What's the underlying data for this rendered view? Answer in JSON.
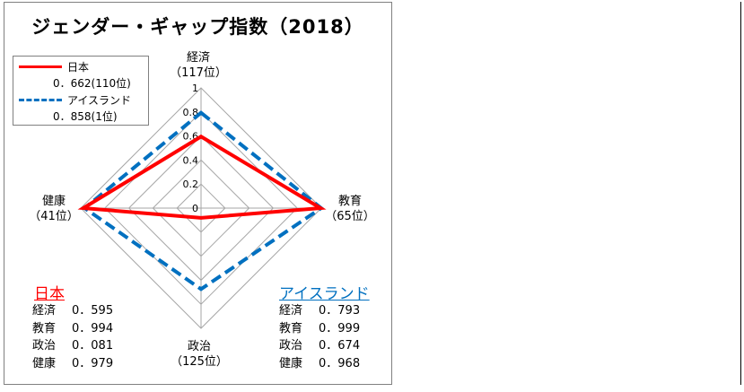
{
  "title": "ジェンダー・ギャップ指数（2018）",
  "axes": [
    {
      "name": "経済",
      "rank": "（117位）"
    },
    {
      "name": "教育",
      "rank": "（65位）"
    },
    {
      "name": "政治",
      "rank": "（125位）"
    },
    {
      "name": "健康",
      "rank": "（41位）"
    }
  ],
  "legend": [
    {
      "name": "日本",
      "value": "0．662(110位)"
    },
    {
      "name": "アイスランド",
      "value": "0．858(1位)"
    }
  ],
  "tables": {
    "japan": {
      "title": "日本",
      "rows": [
        {
          "k": "経済",
          "v": "0．595"
        },
        {
          "k": "教育",
          "v": "0．994"
        },
        {
          "k": "政治",
          "v": "0．081"
        },
        {
          "k": "健康",
          "v": "0．979"
        }
      ]
    },
    "iceland": {
      "title": "アイスランド",
      "rows": [
        {
          "k": "経済",
          "v": "0．793"
        },
        {
          "k": "教育",
          "v": "0．999"
        },
        {
          "k": "政治",
          "v": "0．674"
        },
        {
          "k": "健康",
          "v": "0．968"
        }
      ]
    }
  },
  "colors": {
    "japan": "#ff0000",
    "iceland": "#0070c0",
    "grid": "#a6a6a6",
    "title_japan": "#ff0000",
    "title_iceland": "#0070c0"
  },
  "chart_data": {
    "type": "radar",
    "title": "ジェンダー・ギャップ指数（2018）",
    "categories": [
      "経済",
      "教育",
      "政治",
      "健康"
    ],
    "rlim": [
      0,
      1
    ],
    "ticks": [
      0,
      0.2,
      0.4,
      0.6,
      0.8,
      1
    ],
    "tick_labels": [
      "0",
      "0.2",
      "0.4",
      "0.6",
      "0.8",
      "1"
    ],
    "series": [
      {
        "name": "日本",
        "values": [
          0.595,
          0.994,
          0.081,
          0.979
        ],
        "style": "solid"
      },
      {
        "name": "アイスランド",
        "values": [
          0.793,
          0.999,
          0.674,
          0.968
        ],
        "style": "dashed"
      }
    ],
    "grid": true,
    "legend": "top-left"
  }
}
